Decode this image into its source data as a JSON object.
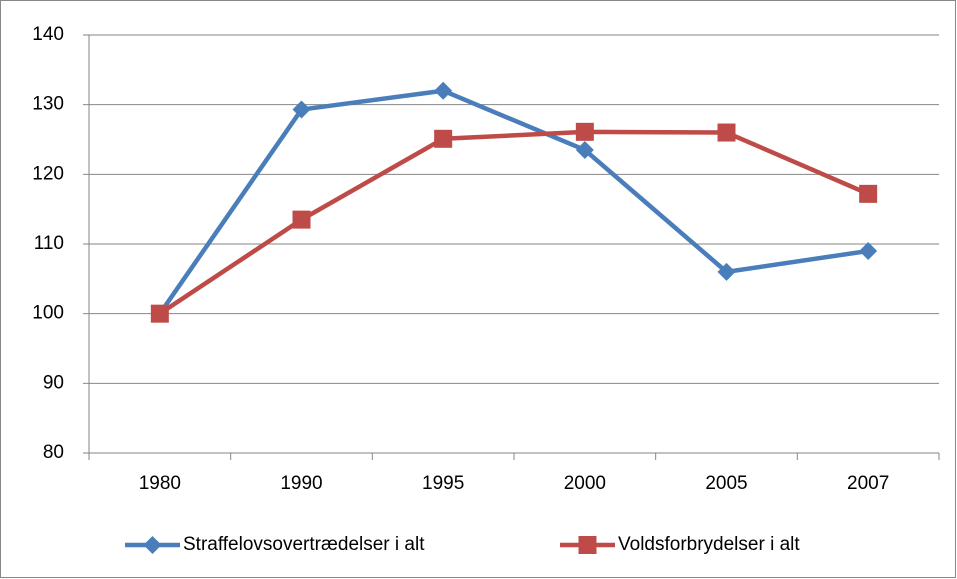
{
  "chart_data": {
    "type": "line",
    "categories": [
      "1980",
      "1990",
      "1995",
      "2000",
      "2005",
      "2007"
    ],
    "series": [
      {
        "name": "Straffelovsovertrædelser i alt",
        "color": "#4a7ebb",
        "marker": "diamond",
        "values": [
          100,
          129.3,
          132,
          123.5,
          106,
          109
        ]
      },
      {
        "name": "Voldsforbrydelser i alt",
        "color": "#be4b48",
        "marker": "square",
        "values": [
          100,
          113.5,
          125.1,
          126.1,
          126,
          117.2
        ]
      }
    ],
    "ylim": [
      80,
      140
    ],
    "yticks": [
      80,
      90,
      100,
      110,
      120,
      130,
      140
    ],
    "grid": true,
    "legend": "bottom"
  }
}
